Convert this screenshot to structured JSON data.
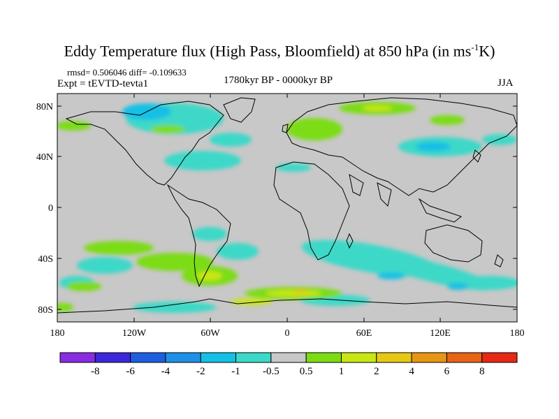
{
  "title": {
    "main": "Eddy Temperature flux (High Pass, Bloomfield) at 850 hPa (in ms",
    "sup": "-1",
    "end": "K)"
  },
  "stats": "rmsd= 0.506046 diff= -0.109633",
  "expt": "Expt = tEVTD-tevta1",
  "period": "1780kyr BP - 0000kyr BP",
  "season": "JJA",
  "lat_ticks": [
    "80N",
    "40N",
    "0",
    "40S",
    "80S"
  ],
  "lon_ticks": [
    "180",
    "120W",
    "60W",
    "0",
    "60E",
    "120E",
    "180"
  ],
  "colorbar": {
    "labels": [
      "-8",
      "-6",
      "-4",
      "-2",
      "-1",
      "-0.5",
      "0.5",
      "1",
      "2",
      "4",
      "6",
      "8"
    ],
    "colors": [
      "#8a2be2",
      "#3c28d8",
      "#1e5fe0",
      "#1e90e6",
      "#14c0e4",
      "#3cd8c8",
      "#c8c8c8",
      "#7cdc14",
      "#c8e614",
      "#e6c814",
      "#e69614",
      "#e66414",
      "#e62814"
    ]
  },
  "palette": {
    "land_ocean_neutral": "#c8c8c8",
    "coastline": "#000000"
  }
}
